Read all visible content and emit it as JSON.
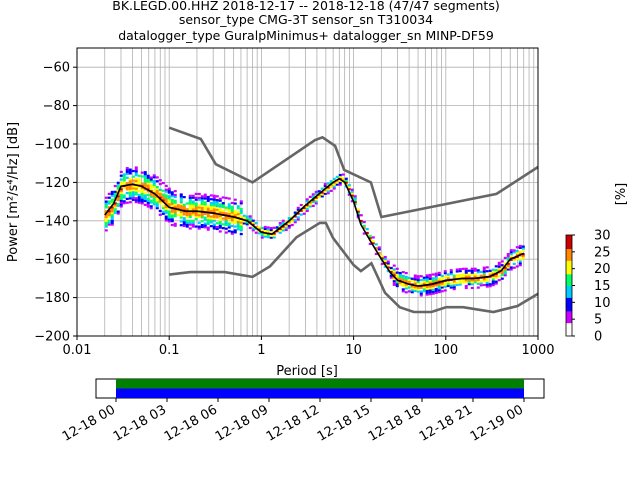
{
  "title": {
    "line1": "BK.LEGD.00.HHZ   2018-12-17 -- 2018-12-18  (47/47 segments)",
    "line2": "sensor_type CMG-3T sensor_sn T310034",
    "line3": "datalogger_type GuralpMinimus+ datalogger_sn MINP-DF59"
  },
  "chart_data": [
    {
      "type": "heatmap",
      "title": "BK.LEGD.00.HHZ   2018-12-17 -- 2018-12-18  (47/47 segments)",
      "xlabel": "Period [s]",
      "ylabel": "Power [m²/s⁴/Hz] [dB]",
      "xscale": "log",
      "xlim": [
        0.01,
        1000
      ],
      "ylim": [
        -200,
        -50
      ],
      "grid": true,
      "xticks": [
        {
          "v": 0.01,
          "label": "0.01"
        },
        {
          "v": 0.1,
          "label": "0.1"
        },
        {
          "v": 1,
          "label": "1"
        },
        {
          "v": 10,
          "label": "10"
        },
        {
          "v": 100,
          "label": "100"
        },
        {
          "v": 1000,
          "label": "1000"
        }
      ],
      "yticks": [
        {
          "v": -60,
          "label": "−60"
        },
        {
          "v": -80,
          "label": "−80"
        },
        {
          "v": -100,
          "label": "−100"
        },
        {
          "v": -120,
          "label": "−120"
        },
        {
          "v": -140,
          "label": "−140"
        },
        {
          "v": -160,
          "label": "−160"
        },
        {
          "v": -180,
          "label": "−180"
        },
        {
          "v": -200,
          "label": "−200"
        }
      ],
      "colorbar": {
        "label": "[%]",
        "range": [
          0,
          30
        ],
        "ticks": [
          "0",
          "5",
          "10",
          "15",
          "20",
          "25",
          "30"
        ],
        "colors": [
          "#ffffff",
          "#cc00ff",
          "#0000ff",
          "#00ccff",
          "#00ff66",
          "#ffff00",
          "#ff8800",
          "#cc0000"
        ]
      },
      "series": [
        {
          "name": "",
          "role": "new-high-noise-model",
          "color": "#666666",
          "x": [
            0.1,
            0.22,
            0.32,
            0.8,
            3.8,
            4.6,
            6.3,
            7.9,
            15.4,
            20,
            354.8,
            1000
          ],
          "y": [
            -91.5,
            -97.4,
            -110.5,
            -120,
            -98,
            -96.5,
            -101,
            -113.5,
            -120,
            -138,
            -126,
            -112
          ]
        },
        {
          "name": "",
          "role": "new-low-noise-model",
          "color": "#666666",
          "x": [
            0.1,
            0.17,
            0.4,
            0.8,
            1.24,
            2.4,
            4.3,
            5,
            6,
            10,
            12,
            15.6,
            21.9,
            31.6,
            45,
            70,
            101,
            154,
            328,
            600,
            1000
          ],
          "y": [
            -168,
            -166.7,
            -166.7,
            -169.2,
            -163.7,
            -148.6,
            -141.1,
            -141.1,
            -149,
            -163,
            -166.2,
            -162.1,
            -177.5,
            -185,
            -187.5,
            -187.5,
            -185,
            -185,
            -187.5,
            -184.4,
            -178
          ]
        },
        {
          "name": "",
          "role": "mode",
          "color": "#000000",
          "x": [
            0.02,
            0.025,
            0.03,
            0.04,
            0.05,
            0.07,
            0.1,
            0.15,
            0.2,
            0.3,
            0.5,
            0.7,
            1.0,
            1.3,
            2,
            3,
            4,
            5,
            6,
            7,
            8,
            10,
            12,
            15,
            20,
            25,
            30,
            40,
            50,
            70,
            100,
            150,
            200,
            300,
            400,
            500,
            700
          ],
          "y": [
            -137,
            -131,
            -122,
            -121,
            -122,
            -126,
            -133,
            -135,
            -135,
            -136,
            -138,
            -140,
            -146,
            -147,
            -140,
            -132,
            -127,
            -123,
            -120,
            -118,
            -120,
            -130,
            -142,
            -150,
            -160,
            -167,
            -171,
            -173,
            -174,
            -173,
            -171,
            -170,
            -170,
            -169,
            -166,
            -160,
            -157
          ]
        }
      ]
    },
    {
      "type": "timeline",
      "xticks": [
        "12-18 00",
        "12-18 03",
        "12-18 06",
        "12-18 09",
        "12-18 12",
        "12-18 15",
        "12-18 18",
        "12-18 21",
        "12-19 00"
      ],
      "bands": [
        {
          "name": "",
          "color": "#008000",
          "from_hours": 0,
          "to_hours": 24
        },
        {
          "name": "",
          "color": "#0000ff",
          "from_hours": 0,
          "to_hours": 24
        }
      ]
    }
  ]
}
